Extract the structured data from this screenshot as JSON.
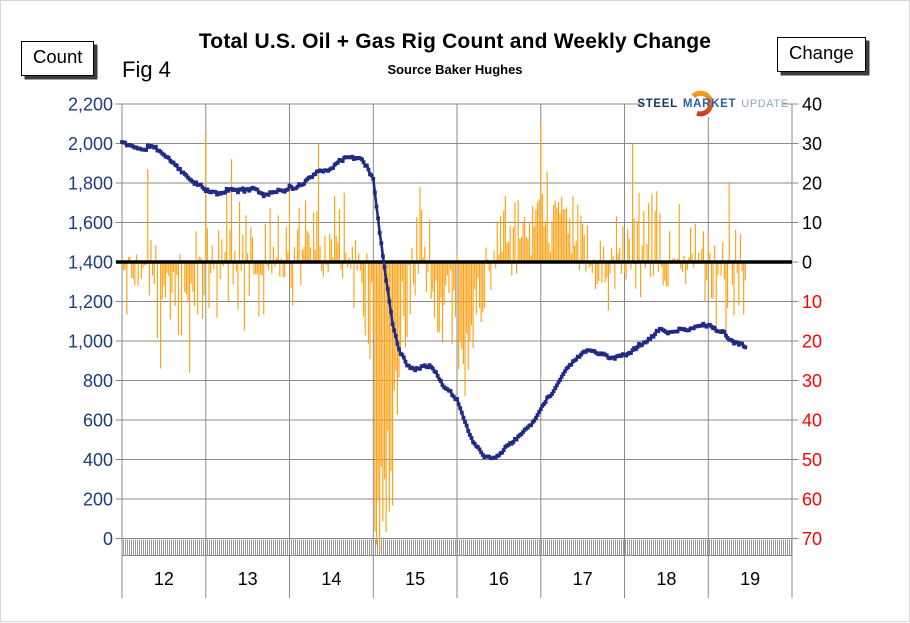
{
  "figure": {
    "fig_label": "Fig 4",
    "title": "Total U.S. Oil + Gas Rig Count and Weekly Change",
    "subtitle": "Source Baker Hughes"
  },
  "buttons": {
    "left": "Count",
    "right": "Change"
  },
  "logo": {
    "steel": "STEEL",
    "market": "MARKET",
    "update": "UPDATE"
  },
  "chart_data": {
    "type": "line+bar",
    "title": "Total U.S. Oil + Gas Rig Count and Weekly Change",
    "source": "Source Baker Hughes",
    "grid": "on",
    "grid_color": "#8a8a8a",
    "zero_line_color": "#000000",
    "left_axis": {
      "name": "Count",
      "min": 0,
      "max": 2200,
      "step": 200,
      "tick_labels": [
        "2,200",
        "2,000",
        "1,800",
        "1,600",
        "1,400",
        "1,200",
        "1,000",
        "800",
        "600",
        "400",
        "200",
        "0"
      ],
      "text_color": "#1e3d78"
    },
    "right_axis": {
      "name": "Change",
      "min": -70,
      "max": 40,
      "step": 10,
      "tick_labels": [
        "40",
        "30",
        "20",
        "10",
        "0",
        "10",
        "20",
        "30",
        "40",
        "50",
        "60",
        "70"
      ],
      "positive_color": "#000000",
      "negative_color": "#ff0000",
      "note": "labels below zero are shown red as absolute values; change 0 aligns with count 1,400 (1 change unit = 20 count units)"
    },
    "x_axis": {
      "start_year": 2012,
      "end_year": 2020,
      "year_labels": [
        "12",
        "13",
        "14",
        "15",
        "16",
        "17",
        "18",
        "19"
      ]
    },
    "series": [
      {
        "name": "Total U.S. oil + gas rig count",
        "type": "line",
        "color": "#222b84",
        "points_year_value": [
          [
            2012.0,
            2007
          ],
          [
            2012.08,
            1990
          ],
          [
            2012.17,
            1984
          ],
          [
            2012.25,
            1962
          ],
          [
            2012.33,
            1990
          ],
          [
            2012.42,
            1972
          ],
          [
            2012.5,
            1945
          ],
          [
            2012.58,
            1914
          ],
          [
            2012.67,
            1880
          ],
          [
            2012.75,
            1840
          ],
          [
            2012.83,
            1814
          ],
          [
            2012.92,
            1790
          ],
          [
            2013.0,
            1762
          ],
          [
            2013.08,
            1753
          ],
          [
            2013.17,
            1746
          ],
          [
            2013.25,
            1761
          ],
          [
            2013.33,
            1769
          ],
          [
            2013.42,
            1759
          ],
          [
            2013.5,
            1770
          ],
          [
            2013.58,
            1776
          ],
          [
            2013.67,
            1744
          ],
          [
            2013.75,
            1742
          ],
          [
            2013.83,
            1762
          ],
          [
            2013.92,
            1757
          ],
          [
            2014.0,
            1777
          ],
          [
            2014.08,
            1771
          ],
          [
            2014.17,
            1803
          ],
          [
            2014.25,
            1831
          ],
          [
            2014.33,
            1859
          ],
          [
            2014.42,
            1861
          ],
          [
            2014.5,
            1876
          ],
          [
            2014.58,
            1904
          ],
          [
            2014.67,
            1931
          ],
          [
            2014.75,
            1924
          ],
          [
            2014.83,
            1929
          ],
          [
            2014.92,
            1893
          ],
          [
            2015.0,
            1811
          ],
          [
            2015.08,
            1543
          ],
          [
            2015.17,
            1267
          ],
          [
            2015.25,
            1048
          ],
          [
            2015.33,
            932
          ],
          [
            2015.42,
            875
          ],
          [
            2015.5,
            859
          ],
          [
            2015.58,
            874
          ],
          [
            2015.67,
            877
          ],
          [
            2015.75,
            838
          ],
          [
            2015.83,
            775
          ],
          [
            2015.92,
            744
          ],
          [
            2016.0,
            698
          ],
          [
            2016.08,
            619
          ],
          [
            2016.17,
            502
          ],
          [
            2016.25,
            464
          ],
          [
            2016.33,
            420
          ],
          [
            2016.42,
            404
          ],
          [
            2016.5,
            421
          ],
          [
            2016.58,
            463
          ],
          [
            2016.67,
            489
          ],
          [
            2016.75,
            522
          ],
          [
            2016.83,
            557
          ],
          [
            2016.92,
            593
          ],
          [
            2017.0,
            658
          ],
          [
            2017.08,
            712
          ],
          [
            2017.17,
            754
          ],
          [
            2017.25,
            824
          ],
          [
            2017.33,
            870
          ],
          [
            2017.42,
            908
          ],
          [
            2017.5,
            940
          ],
          [
            2017.58,
            958
          ],
          [
            2017.67,
            940
          ],
          [
            2017.75,
            935
          ],
          [
            2017.83,
            909
          ],
          [
            2017.92,
            923
          ],
          [
            2018.0,
            929
          ],
          [
            2018.08,
            947
          ],
          [
            2018.17,
            978
          ],
          [
            2018.25,
            993
          ],
          [
            2018.33,
            1021
          ],
          [
            2018.42,
            1059
          ],
          [
            2018.5,
            1047
          ],
          [
            2018.58,
            1044
          ],
          [
            2018.67,
            1057
          ],
          [
            2018.75,
            1054
          ],
          [
            2018.83,
            1068
          ],
          [
            2018.92,
            1079
          ],
          [
            2019.0,
            1083
          ],
          [
            2019.08,
            1059
          ],
          [
            2019.17,
            1047
          ],
          [
            2019.25,
            1006
          ],
          [
            2019.33,
            991
          ],
          [
            2019.42,
            978
          ],
          [
            2019.45,
            969
          ]
        ]
      },
      {
        "name": "Weekly change",
        "type": "bar",
        "color": "#ffa113",
        "derivation": "week-over-week difference of the rig count series, weekly resolution",
        "end_year": 2019.45,
        "seed": 11,
        "noise_sd_eras": [
          [
            2012.0,
            7
          ],
          [
            2014.9,
            10
          ],
          [
            2015.35,
            7
          ],
          [
            2016.35,
            4.5
          ],
          [
            2017.6,
            6.5
          ]
        ],
        "spikes_year_value": [
          [
            2012.47,
            -27
          ],
          [
            2012.8,
            -28
          ],
          [
            2013.0,
            33
          ],
          [
            2013.3,
            26
          ],
          [
            2014.35,
            30
          ],
          [
            2015.55,
            19
          ],
          [
            2016.1,
            -34
          ],
          [
            2017.0,
            35
          ],
          [
            2018.1,
            30
          ],
          [
            2019.25,
            20
          ]
        ],
        "clip": [
          -74,
          38
        ]
      }
    ]
  }
}
